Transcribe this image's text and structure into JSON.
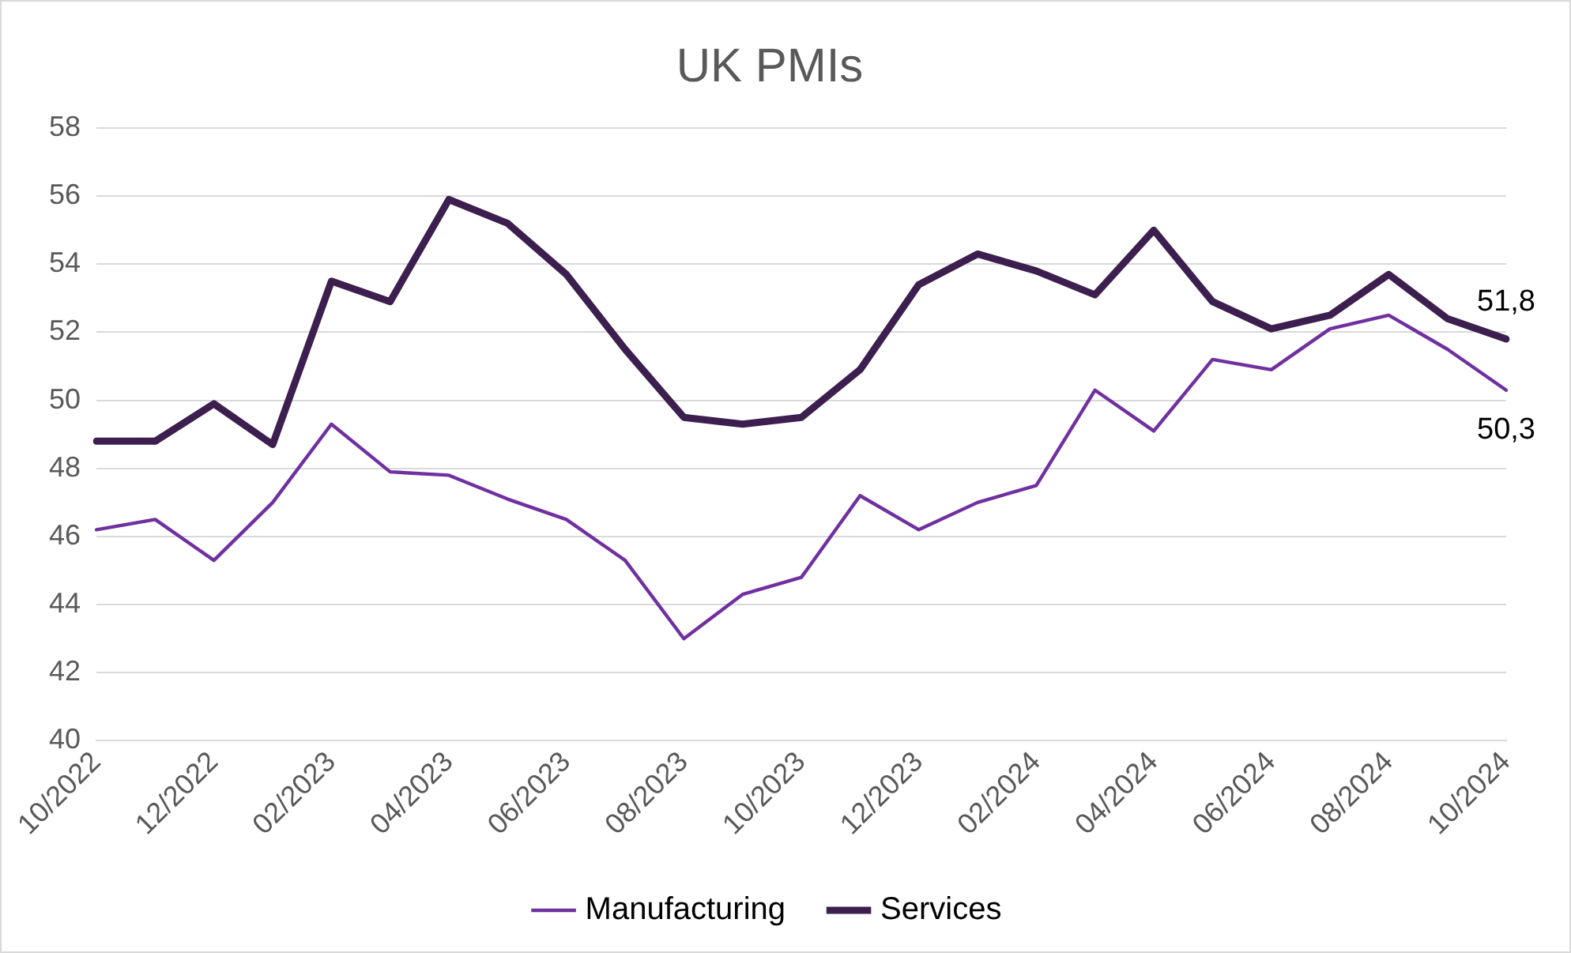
{
  "chart_data": {
    "type": "line",
    "title": "UK PMIs",
    "categories": [
      "10/2022",
      null,
      "12/2022",
      null,
      "02/2023",
      null,
      "04/2023",
      null,
      "06/2023",
      null,
      "08/2023",
      null,
      "10/2023",
      null,
      "12/2023",
      null,
      "02/2024",
      null,
      "04/2024",
      null,
      "06/2024",
      null,
      "08/2024",
      null,
      "10/2024"
    ],
    "series": [
      {
        "name": "Manufacturing",
        "color": "#7030a0",
        "values": [
          46.2,
          46.5,
          45.3,
          47.0,
          49.3,
          47.9,
          47.8,
          47.1,
          46.5,
          45.3,
          43.0,
          44.3,
          44.8,
          47.2,
          46.2,
          47.0,
          47.5,
          50.3,
          49.1,
          51.2,
          50.9,
          52.1,
          52.5,
          51.5,
          50.3
        ]
      },
      {
        "name": "Services",
        "color": "#3c1f4f",
        "values": [
          48.8,
          48.8,
          49.9,
          48.7,
          53.5,
          52.9,
          55.9,
          55.2,
          53.7,
          51.5,
          49.5,
          49.3,
          49.5,
          50.9,
          53.4,
          54.3,
          53.8,
          53.1,
          55.0,
          52.9,
          52.1,
          52.5,
          53.7,
          52.4,
          51.8
        ]
      }
    ],
    "ylim": [
      40,
      58
    ],
    "yticks": [
      40,
      42,
      44,
      46,
      48,
      50,
      52,
      54,
      56,
      58
    ],
    "grid": "y",
    "legend": "bottom",
    "marker": "none",
    "line_style": "solid",
    "annotations": [
      {
        "text": "51,8",
        "x": "10/2024",
        "y": 51.8
      },
      {
        "text": "50,3",
        "x": "10/2024",
        "y": 50.3
      }
    ]
  }
}
